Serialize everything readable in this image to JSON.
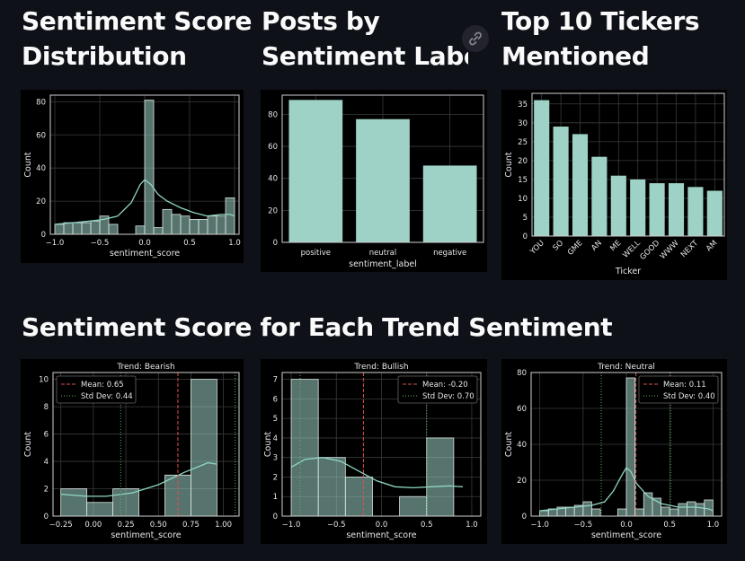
{
  "headings": {
    "dist": [
      "Sentiment Score",
      "Distribution"
    ],
    "labels": [
      "Posts by",
      "Sentiment Label"
    ],
    "tickers": [
      "Top 10 Tickers",
      "Mentioned"
    ],
    "trend": "Sentiment Score for Each Trend Sentiment"
  },
  "icons": {
    "link": "link-icon"
  },
  "chart_data": [
    {
      "id": "dist",
      "type": "bar",
      "subtype": "histogram_kde",
      "xlabel": "sentiment_score",
      "ylabel": "Count",
      "xlim": [
        -1.05,
        1.05
      ],
      "ylim": [
        0,
        84
      ],
      "xticks": [
        -1.0,
        -0.5,
        0.0,
        0.5,
        1.0
      ],
      "xtick_labels": [
        "−1.0",
        "−0.5",
        "0.0",
        "0.5",
        "1.0"
      ],
      "yticks": [
        0,
        20,
        40,
        60,
        80
      ],
      "ytick_labels": [
        "0",
        "20",
        "40",
        "60",
        "80"
      ],
      "bins": [
        -1.0,
        -0.9,
        -0.8,
        -0.7,
        -0.6,
        -0.5,
        -0.4,
        -0.3,
        -0.2,
        -0.1,
        0.0,
        0.1,
        0.2,
        0.3,
        0.4,
        0.5,
        0.6,
        0.7,
        0.8,
        0.9,
        1.0
      ],
      "counts": [
        6,
        7,
        7,
        7,
        8,
        11,
        6,
        0,
        0,
        5,
        81,
        4,
        15,
        12,
        11,
        9,
        9,
        11,
        11,
        22
      ],
      "kde": [
        [
          -1.0,
          6
        ],
        [
          -0.8,
          7
        ],
        [
          -0.6,
          8
        ],
        [
          -0.45,
          9
        ],
        [
          -0.3,
          11
        ],
        [
          -0.15,
          19
        ],
        [
          -0.05,
          30
        ],
        [
          0.0,
          33
        ],
        [
          0.07,
          30
        ],
        [
          0.15,
          24
        ],
        [
          0.25,
          20
        ],
        [
          0.4,
          16
        ],
        [
          0.55,
          13
        ],
        [
          0.7,
          11
        ],
        [
          0.85,
          12
        ],
        [
          0.95,
          12
        ],
        [
          1.0,
          11
        ]
      ],
      "grid": true
    },
    {
      "id": "labels",
      "type": "bar",
      "xlabel": "sentiment_label",
      "ylabel": "",
      "categories": [
        "positive",
        "neutral",
        "negative"
      ],
      "values": [
        89,
        77,
        48
      ],
      "ylim": [
        0,
        92
      ],
      "yticks": [
        0,
        20,
        40,
        60,
        80
      ],
      "ytick_labels": [
        "0",
        "20",
        "40",
        "60",
        "80"
      ],
      "grid": true
    },
    {
      "id": "tickers",
      "type": "bar",
      "xlabel": "Ticker",
      "ylabel": "Count",
      "categories": [
        "YOU",
        "SO",
        "GME",
        "AN",
        "ME",
        "WELL",
        "GOOD",
        "WWW",
        "NEXT",
        "AM"
      ],
      "values": [
        36,
        29,
        27,
        21,
        16,
        15,
        14,
        14,
        13,
        12
      ],
      "ylim": [
        0,
        37.8
      ],
      "yticks": [
        0,
        5,
        10,
        15,
        20,
        25,
        30,
        35
      ],
      "ytick_labels": [
        "0",
        "5",
        "10",
        "15",
        "20",
        "25",
        "30",
        "35"
      ],
      "grid": true
    },
    {
      "id": "bearish",
      "type": "bar",
      "subtype": "histogram_kde",
      "title": "Trend: Bearish",
      "xlabel": "sentiment_score",
      "ylabel": "Count",
      "xlim": [
        -0.31,
        1.12
      ],
      "ylim": [
        0,
        10.5
      ],
      "xticks": [
        -0.25,
        0.0,
        0.25,
        0.5,
        0.75,
        1.0
      ],
      "xtick_labels": [
        "−0.25",
        "0.00",
        "0.25",
        "0.50",
        "0.75",
        "1.00"
      ],
      "yticks": [
        0,
        2,
        4,
        6,
        8,
        10
      ],
      "ytick_labels": [
        "0",
        "2",
        "4",
        "6",
        "8",
        "10"
      ],
      "bins": [
        -0.25,
        -0.05,
        0.15,
        0.35,
        0.55,
        0.75,
        0.95
      ],
      "counts": [
        2,
        1,
        2,
        0,
        3,
        10
      ],
      "kde": [
        [
          -0.25,
          1.6
        ],
        [
          -0.05,
          1.45
        ],
        [
          0.1,
          1.45
        ],
        [
          0.3,
          1.7
        ],
        [
          0.5,
          2.3
        ],
        [
          0.7,
          3.2
        ],
        [
          0.88,
          3.9
        ],
        [
          0.95,
          3.8
        ]
      ],
      "mean": 0.65,
      "std_band": [
        0.21,
        1.09
      ],
      "legend": {
        "position": "upper-left",
        "mean": "Mean: 0.65",
        "std": "Std Dev: 0.44"
      },
      "grid": true
    },
    {
      "id": "bullish",
      "type": "bar",
      "subtype": "histogram_kde",
      "title": "Trend: Bullish",
      "xlabel": "sentiment_score",
      "ylabel": "Count",
      "xlim": [
        -1.1,
        1.1
      ],
      "ylim": [
        0,
        7.35
      ],
      "xticks": [
        -1.0,
        -0.5,
        0.0,
        0.5,
        1.0
      ],
      "xtick_labels": [
        "−1.0",
        "−0.5",
        "0.0",
        "0.5",
        "1.0"
      ],
      "yticks": [
        0,
        1,
        2,
        3,
        4,
        5,
        6,
        7
      ],
      "ytick_labels": [
        "0",
        "1",
        "2",
        "3",
        "4",
        "5",
        "6",
        "7"
      ],
      "bins": [
        -1.0,
        -0.7,
        -0.4,
        -0.1,
        0.2,
        0.5,
        0.8
      ],
      "counts": [
        7,
        3,
        2,
        0,
        1,
        4
      ],
      "kde": [
        [
          -1.0,
          2.5
        ],
        [
          -0.85,
          2.9
        ],
        [
          -0.65,
          3.0
        ],
        [
          -0.45,
          2.8
        ],
        [
          -0.25,
          2.3
        ],
        [
          -0.05,
          1.8
        ],
        [
          0.15,
          1.5
        ],
        [
          0.35,
          1.45
        ],
        [
          0.55,
          1.5
        ],
        [
          0.75,
          1.55
        ],
        [
          0.9,
          1.5
        ]
      ],
      "mean": -0.2,
      "std_band": [
        -0.9,
        0.5
      ],
      "legend": {
        "position": "upper-right",
        "mean": "Mean: -0.20",
        "std": "Std Dev: 0.70"
      },
      "grid": true
    },
    {
      "id": "neutral",
      "type": "bar",
      "subtype": "histogram_kde",
      "title": "Trend: Neutral",
      "xlabel": "sentiment_score",
      "ylabel": "Count",
      "xlim": [
        -1.1,
        1.1
      ],
      "ylim": [
        0,
        80
      ],
      "xticks": [
        -1.0,
        -0.5,
        0.0,
        0.5,
        1.0
      ],
      "xtick_labels": [
        "−1.0",
        "−0.5",
        "0.0",
        "0.5",
        "1.0"
      ],
      "yticks": [
        0,
        20,
        40,
        60,
        80
      ],
      "ytick_labels": [
        "0",
        "20",
        "40",
        "60",
        "80"
      ],
      "bins": [
        -1.0,
        -0.9,
        -0.8,
        -0.7,
        -0.6,
        -0.5,
        -0.4,
        -0.3,
        -0.2,
        -0.1,
        0.0,
        0.1,
        0.2,
        0.3,
        0.4,
        0.5,
        0.6,
        0.7,
        0.8,
        0.9,
        1.0
      ],
      "counts": [
        3,
        4,
        5,
        5,
        6,
        8,
        4,
        0,
        0,
        4,
        77,
        4,
        13,
        10,
        5,
        4,
        7,
        8,
        7,
        9
      ],
      "kde": [
        [
          -1.0,
          3
        ],
        [
          -0.8,
          4
        ],
        [
          -0.6,
          5
        ],
        [
          -0.4,
          6
        ],
        [
          -0.25,
          8
        ],
        [
          -0.15,
          14
        ],
        [
          -0.05,
          23
        ],
        [
          0.0,
          27
        ],
        [
          0.05,
          25
        ],
        [
          0.12,
          18
        ],
        [
          0.25,
          11
        ],
        [
          0.4,
          7
        ],
        [
          0.6,
          5
        ],
        [
          0.8,
          5
        ],
        [
          0.95,
          4
        ],
        [
          1.0,
          3
        ]
      ],
      "mean": 0.11,
      "std_band": [
        -0.29,
        0.51
      ],
      "legend": {
        "position": "upper-right",
        "mean": "Mean: 0.11",
        "std": "Std Dev: 0.40"
      },
      "grid": true
    }
  ]
}
